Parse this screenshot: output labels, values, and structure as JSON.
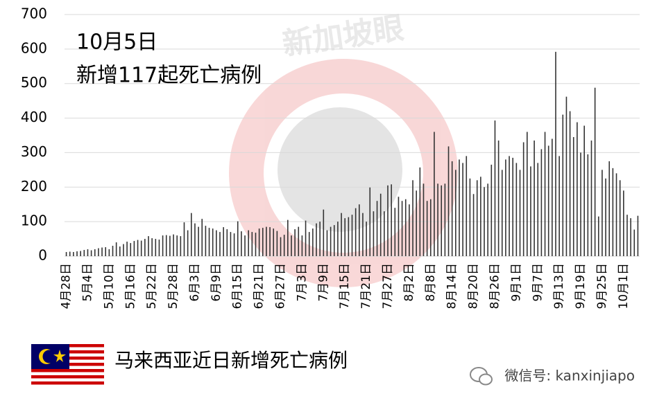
{
  "chart_data": {
    "type": "bar",
    "title": "10月5日",
    "subtitle": "新增117起死亡病例",
    "caption": "马来西亚近日新增死亡病例",
    "watermark": "新加坡眼",
    "source": "微信号: kanxinjiapo",
    "color": "#333333",
    "grid": true,
    "ylim": [
      0,
      700
    ],
    "yticks": [
      0,
      100,
      200,
      300,
      400,
      500,
      600,
      700
    ],
    "categories": [
      "4月28日",
      null,
      null,
      null,
      null,
      null,
      "5月4日",
      null,
      null,
      null,
      null,
      null,
      "5月10日",
      null,
      null,
      null,
      null,
      null,
      "5月16日",
      null,
      null,
      null,
      null,
      null,
      "5月22日",
      null,
      null,
      null,
      null,
      null,
      "5月28日",
      null,
      null,
      null,
      null,
      null,
      "6月3日",
      null,
      null,
      null,
      null,
      null,
      "6月9日",
      null,
      null,
      null,
      null,
      null,
      "6月15日",
      null,
      null,
      null,
      null,
      null,
      "6月21日",
      null,
      null,
      null,
      null,
      null,
      "6月27日",
      null,
      null,
      null,
      null,
      null,
      "7月3日",
      null,
      null,
      null,
      null,
      null,
      "7月9日",
      null,
      null,
      null,
      null,
      null,
      "7月15日",
      null,
      null,
      null,
      null,
      null,
      "7月21日",
      null,
      null,
      null,
      null,
      null,
      "7月27日",
      null,
      null,
      null,
      null,
      null,
      "8月2日",
      null,
      null,
      null,
      null,
      null,
      "8月8日",
      null,
      null,
      null,
      null,
      null,
      "8月14日",
      null,
      null,
      null,
      null,
      null,
      "8月20日",
      null,
      null,
      null,
      null,
      null,
      "8月26日",
      null,
      null,
      null,
      null,
      null,
      "9月1日",
      null,
      null,
      null,
      null,
      null,
      "9月7日",
      null,
      null,
      null,
      null,
      null,
      "9月13日",
      null,
      null,
      null,
      null,
      null,
      "9月19日",
      null,
      null,
      null,
      null,
      null,
      "9月25日",
      null,
      null,
      null,
      null,
      null,
      "10月1日",
      null,
      null,
      null,
      null
    ],
    "values": [
      12,
      13,
      12,
      14,
      15,
      18,
      20,
      17,
      20,
      23,
      25,
      26,
      20,
      30,
      40,
      28,
      35,
      42,
      38,
      44,
      47,
      45,
      50,
      58,
      52,
      50,
      48,
      60,
      61,
      59,
      63,
      60,
      58,
      98,
      75,
      125,
      95,
      85,
      108,
      88,
      82,
      80,
      75,
      70,
      84,
      78,
      70,
      66,
      101,
      72,
      60,
      75,
      70,
      68,
      80,
      82,
      85,
      84,
      80,
      73,
      55,
      62,
      105,
      60,
      78,
      85,
      60,
      103,
      70,
      80,
      95,
      100,
      135,
      75,
      85,
      90,
      100,
      125,
      110,
      113,
      120,
      139,
      150,
      125,
      100,
      199,
      130,
      160,
      181,
      130,
      205,
      208,
      140,
      172,
      160,
      165,
      150,
      220,
      190,
      257,
      210,
      160,
      165,
      360,
      210,
      205,
      210,
      318,
      275,
      250,
      280,
      270,
      290,
      225,
      180,
      220,
      230,
      200,
      210,
      265,
      393,
      335,
      250,
      280,
      290,
      285,
      270,
      250,
      330,
      360,
      260,
      335,
      270,
      310,
      360,
      320,
      340,
      592,
      290,
      410,
      462,
      420,
      345,
      388,
      300,
      378,
      295,
      335,
      488,
      115,
      250,
      225,
      275,
      255,
      240,
      220,
      190,
      120,
      110,
      77,
      117
    ]
  }
}
